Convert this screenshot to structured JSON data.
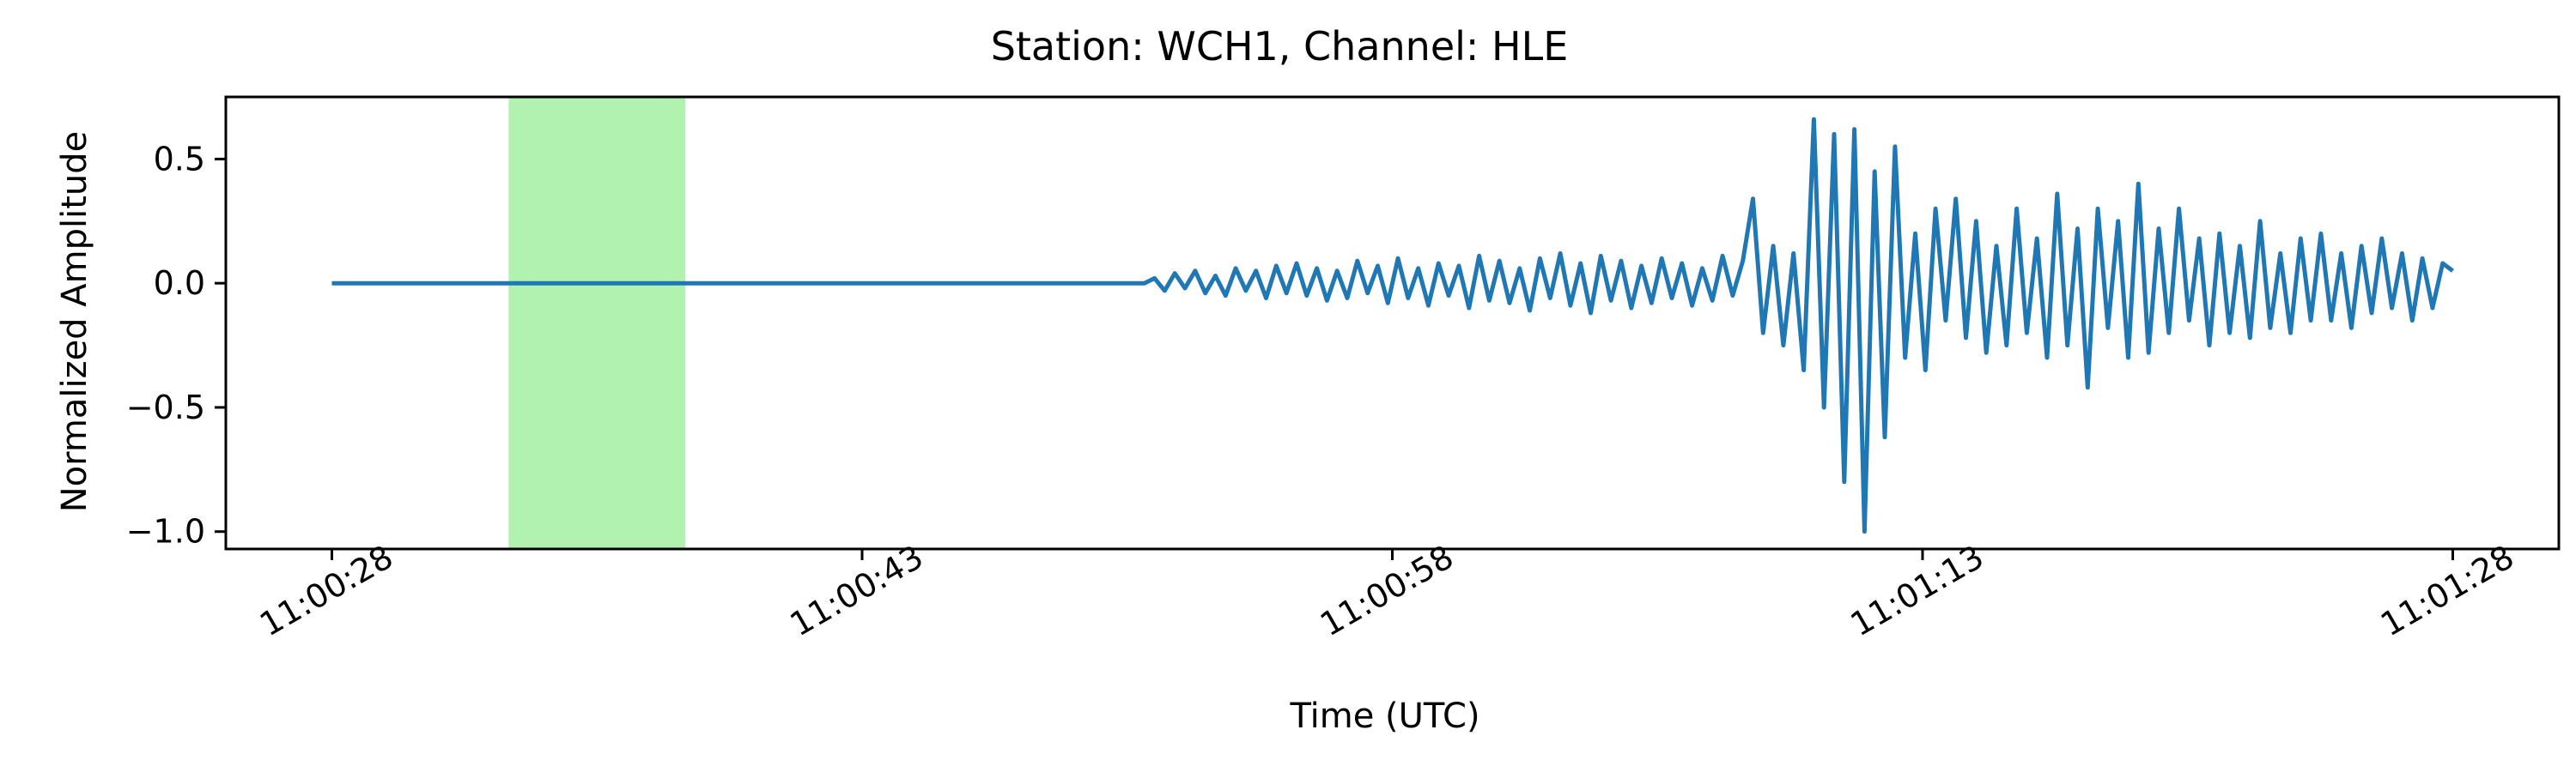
{
  "chart_data": {
    "type": "line",
    "title": "Station: WCH1, Channel: HLE",
    "xlabel": "Time (UTC)",
    "ylabel": "Normalized Amplitude",
    "x_start": "11:00:25",
    "x_end": "11:01:31",
    "xlim": [
      "11:00:25",
      "11:01:31"
    ],
    "ylim": [
      -1.07,
      0.75
    ],
    "xticks": [
      "11:00:28",
      "11:00:43",
      "11:00:58",
      "11:01:13",
      "11:01:28"
    ],
    "yticks": [
      0.5,
      0.0,
      -0.5,
      -1.0
    ],
    "ytick_labels": [
      "0.5",
      "0.0",
      "−0.5",
      "−1.0"
    ],
    "grid": false,
    "shaded_region": {
      "start": "11:00:33",
      "end": "11:00:38",
      "color": "#b2f2b0"
    },
    "series": [
      {
        "color": "#1f77b4",
        "data_start": "11:00:28",
        "data_end": "11:01:28",
        "quiet_until": "11:00:50.7",
        "values_after_onset": [
          0.0,
          0.02,
          -0.03,
          0.04,
          -0.02,
          0.05,
          -0.04,
          0.03,
          -0.05,
          0.06,
          -0.03,
          0.05,
          -0.06,
          0.07,
          -0.04,
          0.08,
          -0.05,
          0.06,
          -0.07,
          0.05,
          -0.06,
          0.09,
          -0.04,
          0.07,
          -0.08,
          0.1,
          -0.06,
          0.06,
          -0.09,
          0.08,
          -0.05,
          0.07,
          -0.1,
          0.11,
          -0.07,
          0.09,
          -0.08,
          0.06,
          -0.11,
          0.1,
          -0.06,
          0.12,
          -0.09,
          0.08,
          -0.12,
          0.11,
          -0.07,
          0.09,
          -0.1,
          0.07,
          -0.08,
          0.1,
          -0.06,
          0.08,
          -0.09,
          0.06,
          -0.07,
          0.11,
          -0.05,
          0.09,
          0.34,
          -0.2,
          0.15,
          -0.25,
          0.12,
          -0.35,
          0.66,
          -0.5,
          0.6,
          -0.8,
          0.62,
          -1.0,
          0.45,
          -0.62,
          0.55,
          -0.3,
          0.2,
          -0.35,
          0.3,
          -0.15,
          0.34,
          -0.22,
          0.25,
          -0.28,
          0.15,
          -0.25,
          0.3,
          -0.2,
          0.18,
          -0.3,
          0.36,
          -0.25,
          0.22,
          -0.42,
          0.3,
          -0.18,
          0.25,
          -0.3,
          0.4,
          -0.28,
          0.22,
          -0.2,
          0.3,
          -0.15,
          0.18,
          -0.25,
          0.2,
          -0.2,
          0.15,
          -0.22,
          0.25,
          -0.18,
          0.12,
          -0.2,
          0.18,
          -0.15,
          0.2,
          -0.15,
          0.12,
          -0.18,
          0.15,
          -0.12,
          0.18,
          -0.1,
          0.12,
          -0.15,
          0.1,
          -0.1,
          0.08,
          0.05
        ]
      }
    ]
  }
}
